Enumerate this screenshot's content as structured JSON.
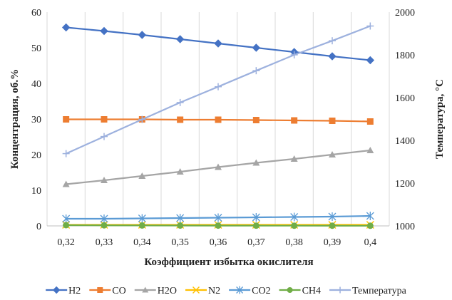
{
  "chart_data": {
    "type": "line",
    "categories": [
      "0,32",
      "0,33",
      "0,34",
      "0,35",
      "0,36",
      "0,37",
      "0,38",
      "0,39",
      "0,4"
    ],
    "xlabel": "Коэффициент избытка окислителя",
    "ylabel": "Концентрация, об.%",
    "y2label": "Температура, °С",
    "ylim": [
      0,
      60
    ],
    "y2lim": [
      1000,
      2000
    ],
    "yticks": [
      "0",
      "10",
      "20",
      "30",
      "40",
      "50",
      "60"
    ],
    "y2ticks": [
      "1000",
      "1200",
      "1400",
      "1600",
      "1800",
      "2000"
    ],
    "grid": "vertical",
    "legend_position": "bottom",
    "series": [
      {
        "name": "H2",
        "axis": "left",
        "color": "#4472C4",
        "marker": "diamond",
        "values": [
          55.7,
          54.7,
          53.6,
          52.4,
          51.2,
          50.0,
          48.8,
          47.6,
          46.5
        ]
      },
      {
        "name": "CO",
        "axis": "left",
        "color": "#ED7D31",
        "marker": "square",
        "values": [
          29.9,
          29.9,
          29.9,
          29.8,
          29.8,
          29.7,
          29.6,
          29.5,
          29.3
        ]
      },
      {
        "name": "H2O",
        "axis": "left",
        "color": "#A5A5A5",
        "marker": "triangle",
        "values": [
          11.7,
          12.8,
          14.0,
          15.2,
          16.5,
          17.7,
          18.8,
          20.0,
          21.2
        ]
      },
      {
        "name": "N2",
        "axis": "left",
        "color": "#FFC000",
        "marker": "x",
        "values": [
          0.3,
          0.3,
          0.3,
          0.3,
          0.3,
          0.3,
          0.3,
          0.3,
          0.3
        ]
      },
      {
        "name": "CO2",
        "axis": "left",
        "color": "#5B9BD5",
        "marker": "star",
        "values": [
          2.0,
          2.0,
          2.1,
          2.2,
          2.3,
          2.4,
          2.5,
          2.6,
          2.8
        ]
      },
      {
        "name": "CH4",
        "axis": "left",
        "color": "#70AD47",
        "marker": "circle",
        "values": [
          0.2,
          0.15,
          0.12,
          0.1,
          0.08,
          0.07,
          0.06,
          0.05,
          0.04
        ]
      },
      {
        "name": "Температура",
        "axis": "right",
        "color": "#9DB1DE",
        "marker": "plus",
        "values": [
          1338,
          1418,
          1498,
          1577,
          1651,
          1726,
          1800,
          1866,
          1935
        ]
      }
    ]
  }
}
